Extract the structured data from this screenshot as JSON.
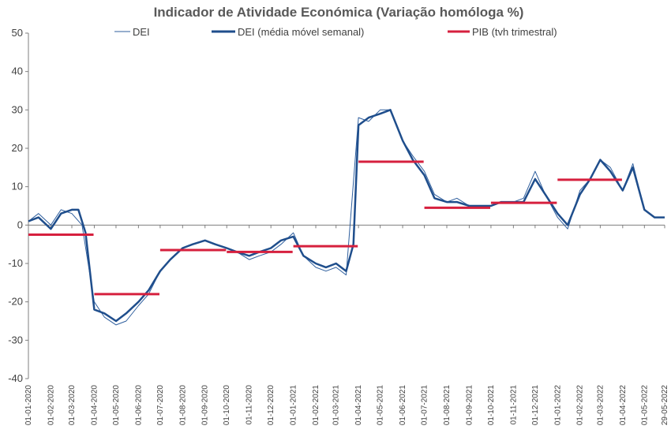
{
  "chart_data": {
    "type": "line",
    "title": "Indicador de Atividade Económica (Variação homóloga %)",
    "xlabel": "",
    "ylabel": "",
    "ylim": [
      -40,
      50
    ],
    "yticks": [
      -40,
      -30,
      -20,
      -10,
      0,
      10,
      20,
      30,
      40,
      50
    ],
    "grid": false,
    "legend_position": "top",
    "x_tick_labels": [
      "01-01-2020",
      "01-02-2020",
      "01-03-2020",
      "01-04-2020",
      "01-05-2020",
      "01-06-2020",
      "01-07-2020",
      "01-08-2020",
      "01-09-2020",
      "01-10-2020",
      "01-11-2020",
      "01-12-2020",
      "01-01-2021",
      "01-02-2021",
      "01-03-2021",
      "01-04-2021",
      "01-05-2021",
      "01-06-2021",
      "01-07-2021",
      "01-08-2021",
      "01-09-2021",
      "01-10-2021",
      "01-11-2021",
      "01-12-2021",
      "01-01-2022",
      "01-02-2022",
      "01-03-2022",
      "01-04-2022",
      "01-05-2022",
      "29-05-2022"
    ],
    "series": [
      {
        "name": "DEI",
        "style": "thin",
        "color": "#2f5f9e",
        "points": [
          [
            "2020-01-01",
            1
          ],
          [
            "2020-01-15",
            3
          ],
          [
            "2020-02-01",
            0
          ],
          [
            "2020-02-15",
            4
          ],
          [
            "2020-03-01",
            3
          ],
          [
            "2020-03-15",
            0
          ],
          [
            "2020-04-01",
            -20
          ],
          [
            "2020-04-15",
            -24
          ],
          [
            "2020-05-01",
            -26
          ],
          [
            "2020-05-15",
            -25
          ],
          [
            "2020-06-01",
            -21
          ],
          [
            "2020-06-15",
            -18
          ],
          [
            "2020-07-01",
            -12
          ],
          [
            "2020-07-15",
            -9
          ],
          [
            "2020-08-01",
            -6
          ],
          [
            "2020-08-15",
            -5
          ],
          [
            "2020-09-01",
            -4
          ],
          [
            "2020-09-15",
            -5
          ],
          [
            "2020-10-01",
            -6
          ],
          [
            "2020-10-15",
            -7
          ],
          [
            "2020-11-01",
            -9
          ],
          [
            "2020-11-15",
            -8
          ],
          [
            "2020-12-01",
            -7
          ],
          [
            "2020-12-15",
            -5
          ],
          [
            "2021-01-01",
            -2
          ],
          [
            "2021-01-15",
            -8
          ],
          [
            "2021-02-01",
            -11
          ],
          [
            "2021-02-15",
            -12
          ],
          [
            "2021-03-01",
            -11
          ],
          [
            "2021-03-15",
            -13
          ],
          [
            "2021-04-01",
            28
          ],
          [
            "2021-04-15",
            27
          ],
          [
            "2021-05-01",
            30
          ],
          [
            "2021-05-15",
            30
          ],
          [
            "2021-06-01",
            22
          ],
          [
            "2021-06-15",
            18
          ],
          [
            "2021-07-01",
            14
          ],
          [
            "2021-07-15",
            8
          ],
          [
            "2021-08-01",
            6
          ],
          [
            "2021-08-15",
            7
          ],
          [
            "2021-09-01",
            5
          ],
          [
            "2021-09-15",
            5
          ],
          [
            "2021-10-01",
            5
          ],
          [
            "2021-10-15",
            6
          ],
          [
            "2021-11-01",
            6
          ],
          [
            "2021-11-15",
            7
          ],
          [
            "2021-12-01",
            14
          ],
          [
            "2021-12-15",
            8
          ],
          [
            "2022-01-01",
            2
          ],
          [
            "2022-01-15",
            -1
          ],
          [
            "2022-02-01",
            9
          ],
          [
            "2022-02-15",
            12
          ],
          [
            "2022-03-01",
            17
          ],
          [
            "2022-03-15",
            15
          ],
          [
            "2022-04-01",
            9
          ],
          [
            "2022-04-15",
            16
          ],
          [
            "2022-05-01",
            4
          ],
          [
            "2022-05-15",
            2
          ],
          [
            "2022-05-29",
            2
          ]
        ]
      },
      {
        "name": "DEI (média móvel semanal)",
        "style": "thick",
        "color": "#1f4e8c",
        "points": [
          [
            "2020-01-01",
            1
          ],
          [
            "2020-01-15",
            2
          ],
          [
            "2020-02-01",
            -1
          ],
          [
            "2020-02-15",
            3
          ],
          [
            "2020-03-01",
            4
          ],
          [
            "2020-03-10",
            4
          ],
          [
            "2020-03-20",
            -2
          ],
          [
            "2020-04-01",
            -22
          ],
          [
            "2020-04-15",
            -23
          ],
          [
            "2020-05-01",
            -25
          ],
          [
            "2020-05-15",
            -23
          ],
          [
            "2020-06-01",
            -20
          ],
          [
            "2020-06-15",
            -17
          ],
          [
            "2020-07-01",
            -12
          ],
          [
            "2020-07-15",
            -9
          ],
          [
            "2020-08-01",
            -6
          ],
          [
            "2020-08-15",
            -5
          ],
          [
            "2020-09-01",
            -4
          ],
          [
            "2020-09-15",
            -5
          ],
          [
            "2020-10-01",
            -6
          ],
          [
            "2020-10-15",
            -7
          ],
          [
            "2020-11-01",
            -8
          ],
          [
            "2020-11-15",
            -7
          ],
          [
            "2020-12-01",
            -6
          ],
          [
            "2020-12-15",
            -4
          ],
          [
            "2021-01-01",
            -3
          ],
          [
            "2021-01-15",
            -8
          ],
          [
            "2021-02-01",
            -10
          ],
          [
            "2021-02-15",
            -11
          ],
          [
            "2021-03-01",
            -10
          ],
          [
            "2021-03-15",
            -12
          ],
          [
            "2021-03-25",
            -5
          ],
          [
            "2021-04-01",
            26
          ],
          [
            "2021-04-15",
            28
          ],
          [
            "2021-05-01",
            29
          ],
          [
            "2021-05-15",
            30
          ],
          [
            "2021-06-01",
            22
          ],
          [
            "2021-06-15",
            17
          ],
          [
            "2021-07-01",
            13
          ],
          [
            "2021-07-15",
            7
          ],
          [
            "2021-08-01",
            6
          ],
          [
            "2021-08-15",
            6
          ],
          [
            "2021-09-01",
            5
          ],
          [
            "2021-09-15",
            5
          ],
          [
            "2021-10-01",
            5
          ],
          [
            "2021-10-15",
            6
          ],
          [
            "2021-11-01",
            6
          ],
          [
            "2021-11-15",
            6
          ],
          [
            "2021-12-01",
            12
          ],
          [
            "2021-12-15",
            8
          ],
          [
            "2022-01-01",
            3
          ],
          [
            "2022-01-15",
            0
          ],
          [
            "2022-02-01",
            8
          ],
          [
            "2022-02-15",
            12
          ],
          [
            "2022-03-01",
            17
          ],
          [
            "2022-03-15",
            14
          ],
          [
            "2022-04-01",
            9
          ],
          [
            "2022-04-15",
            15
          ],
          [
            "2022-05-01",
            4
          ],
          [
            "2022-05-15",
            2
          ],
          [
            "2022-05-29",
            2
          ]
        ]
      },
      {
        "name": "PIB (tvh trimestral)",
        "style": "step",
        "color": "#d6203e",
        "segments": [
          [
            "2020-01-01",
            "2020-03-31",
            -2.5
          ],
          [
            "2020-04-01",
            "2020-06-30",
            -18
          ],
          [
            "2020-07-01",
            "2020-09-30",
            -6.5
          ],
          [
            "2020-10-01",
            "2020-12-31",
            -7
          ],
          [
            "2021-01-01",
            "2021-03-31",
            -5.5
          ],
          [
            "2021-04-01",
            "2021-06-30",
            16.5
          ],
          [
            "2021-07-01",
            "2021-09-30",
            4.5
          ],
          [
            "2021-10-01",
            "2021-12-31",
            5.8
          ],
          [
            "2022-01-01",
            "2022-03-31",
            11.8
          ]
        ]
      }
    ]
  }
}
